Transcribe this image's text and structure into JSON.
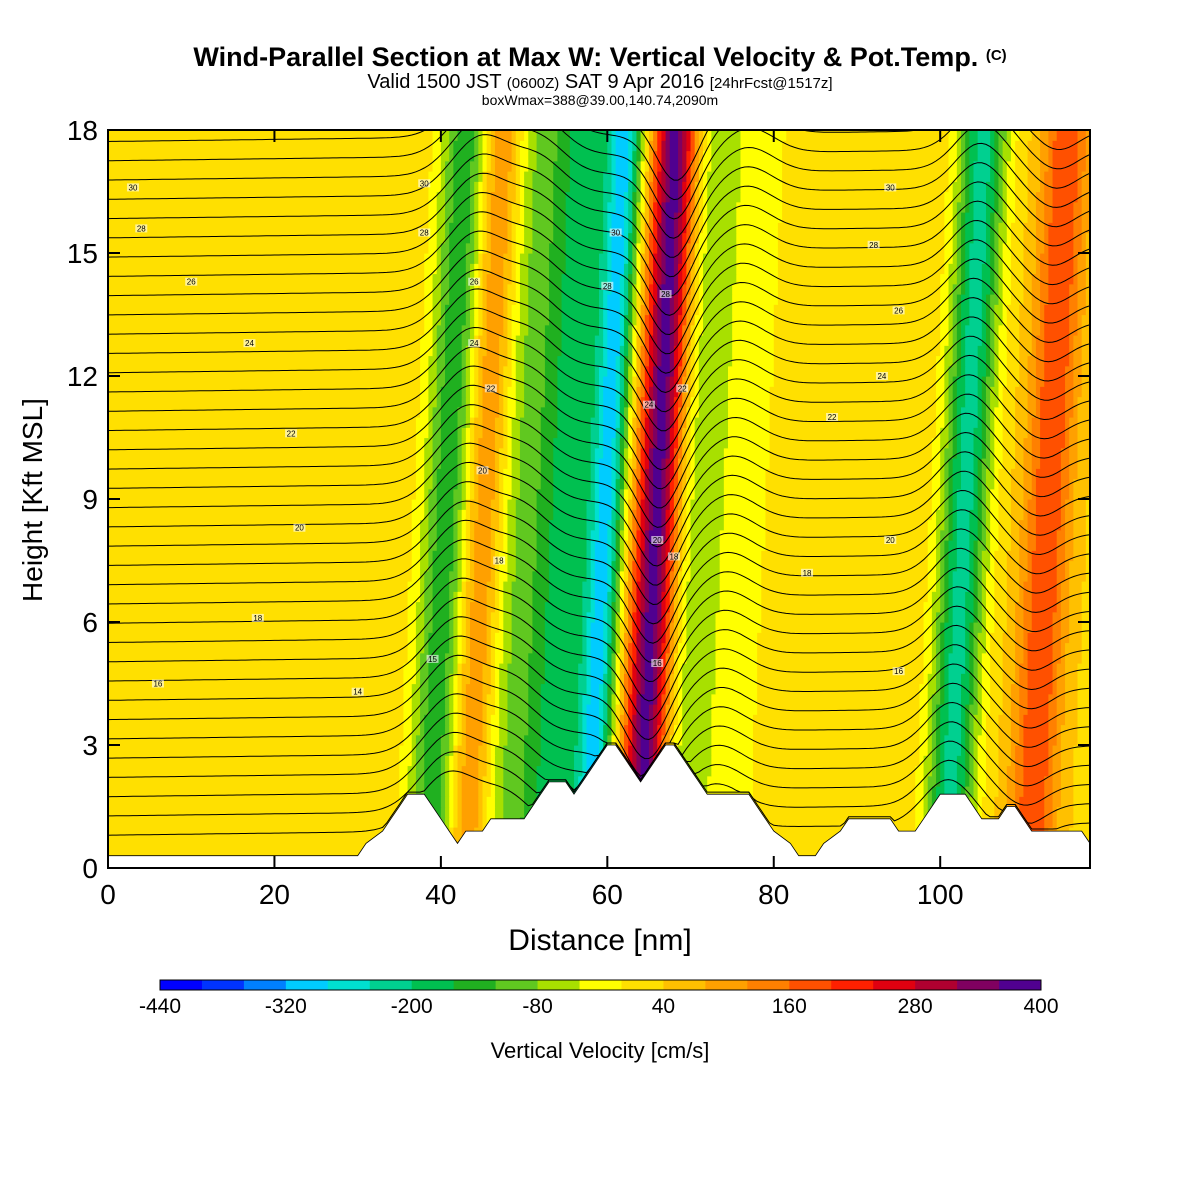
{
  "header": {
    "title": "Wind-Parallel Section at Max W: Vertical Velocity & Pot.Temp.",
    "copyright": "(C)",
    "valid_prefix": "Valid 1500 JST",
    "valid_utc": "(0600Z)",
    "valid_date": "SAT 9 Apr 2016",
    "forecast": "[24hrFcst@1517z]",
    "box_info": "boxWmax=388@39.00,140.74,2090m"
  },
  "chart_data": {
    "type": "heatmap",
    "title": "Wind-Parallel Section at Max W: Vertical Velocity & Pot.Temp.",
    "xlabel": "Distance [nm]",
    "ylabel": "Height [Kft MSL]",
    "xlim": [
      0,
      118
    ],
    "ylim": [
      0,
      18
    ],
    "xticks": [
      0,
      20,
      40,
      60,
      80,
      100
    ],
    "yticks": [
      0,
      3,
      6,
      9,
      12,
      15,
      18
    ],
    "colorbar": {
      "label": "Vertical Velocity [cm/s]",
      "ticks": [
        -440,
        -320,
        -200,
        -80,
        40,
        160,
        280,
        400
      ],
      "min": -440,
      "max": 400,
      "step": 40,
      "colors": [
        "#0000ff",
        "#0033ff",
        "#0080ff",
        "#00ccff",
        "#00e0d0",
        "#00d090",
        "#00c050",
        "#20b020",
        "#60c820",
        "#a8e000",
        "#ffff00",
        "#ffe000",
        "#ffc000",
        "#ffa000",
        "#ff8000",
        "#ff5000",
        "#ff2000",
        "#e00010",
        "#b00030",
        "#800060",
        "#500090"
      ]
    },
    "shading_field": {
      "background": 30,
      "columns": [
        {
          "x": 41,
          "w": 2.2,
          "v": -160
        },
        {
          "x": 45,
          "w": 2.0,
          "v": 150
        },
        {
          "x": 49,
          "w": 2.0,
          "v": -60
        },
        {
          "x": 55,
          "w": 3.0,
          "v": -180
        },
        {
          "x": 60,
          "w": 1.5,
          "v": -250
        },
        {
          "x": 66,
          "w": 1.8,
          "v": 380
        },
        {
          "x": 71,
          "w": 2.0,
          "v": -60
        },
        {
          "x": 76,
          "w": 3.0,
          "v": -20
        },
        {
          "x": 103,
          "w": 2.0,
          "v": -220
        },
        {
          "x": 113,
          "w": 2.0,
          "v": 200
        }
      ]
    },
    "theta_labels": [
      {
        "x": 3,
        "y": 16.6,
        "text": "30"
      },
      {
        "x": 4,
        "y": 15.6,
        "text": "28"
      },
      {
        "x": 10,
        "y": 14.3,
        "text": "26"
      },
      {
        "x": 17,
        "y": 12.8,
        "text": "24"
      },
      {
        "x": 22,
        "y": 10.6,
        "text": "22"
      },
      {
        "x": 23,
        "y": 8.3,
        "text": "20"
      },
      {
        "x": 18,
        "y": 6.1,
        "text": "18"
      },
      {
        "x": 6,
        "y": 4.5,
        "text": "16"
      },
      {
        "x": 30,
        "y": 4.3,
        "text": "14"
      },
      {
        "x": 39,
        "y": 5.1,
        "text": "15"
      },
      {
        "x": 38,
        "y": 16.7,
        "text": "30"
      },
      {
        "x": 38,
        "y": 15.5,
        "text": "28"
      },
      {
        "x": 44,
        "y": 14.3,
        "text": "26"
      },
      {
        "x": 44,
        "y": 12.8,
        "text": "24"
      },
      {
        "x": 46,
        "y": 11.7,
        "text": "22"
      },
      {
        "x": 45,
        "y": 9.7,
        "text": "20"
      },
      {
        "x": 47,
        "y": 7.5,
        "text": "18"
      },
      {
        "x": 61,
        "y": 15.5,
        "text": "30"
      },
      {
        "x": 60,
        "y": 14.2,
        "text": "28"
      },
      {
        "x": 67,
        "y": 14.0,
        "text": "28"
      },
      {
        "x": 69,
        "y": 11.7,
        "text": "22"
      },
      {
        "x": 65,
        "y": 11.3,
        "text": "24"
      },
      {
        "x": 66,
        "y": 8.0,
        "text": "20"
      },
      {
        "x": 68,
        "y": 7.6,
        "text": "18"
      },
      {
        "x": 66,
        "y": 5.0,
        "text": "16"
      },
      {
        "x": 94,
        "y": 16.6,
        "text": "30"
      },
      {
        "x": 92,
        "y": 15.2,
        "text": "28"
      },
      {
        "x": 95,
        "y": 13.6,
        "text": "26"
      },
      {
        "x": 93,
        "y": 12.0,
        "text": "24"
      },
      {
        "x": 87,
        "y": 11.0,
        "text": "22"
      },
      {
        "x": 94,
        "y": 8.0,
        "text": "20"
      },
      {
        "x": 84,
        "y": 7.2,
        "text": "18"
      },
      {
        "x": 95,
        "y": 4.8,
        "text": "16"
      }
    ],
    "terrain": [
      [
        0,
        0.3
      ],
      [
        30,
        0.3
      ],
      [
        31,
        0.6
      ],
      [
        33,
        0.9
      ],
      [
        34,
        1.2
      ],
      [
        35,
        1.5
      ],
      [
        36,
        1.8
      ],
      [
        38,
        1.8
      ],
      [
        39,
        1.5
      ],
      [
        40,
        1.2
      ],
      [
        41,
        0.9
      ],
      [
        42,
        0.6
      ],
      [
        43,
        0.9
      ],
      [
        45,
        0.9
      ],
      [
        46,
        1.2
      ],
      [
        50,
        1.2
      ],
      [
        51,
        1.5
      ],
      [
        52,
        1.8
      ],
      [
        53,
        2.1
      ],
      [
        55,
        2.1
      ],
      [
        56,
        1.8
      ],
      [
        57,
        2.1
      ],
      [
        58,
        2.4
      ],
      [
        59,
        2.7
      ],
      [
        60,
        3.0
      ],
      [
        61,
        3.0
      ],
      [
        62,
        2.7
      ],
      [
        63,
        2.4
      ],
      [
        64,
        2.1
      ],
      [
        65,
        2.4
      ],
      [
        66,
        2.7
      ],
      [
        67,
        3.0
      ],
      [
        68,
        3.0
      ],
      [
        69,
        2.7
      ],
      [
        70,
        2.4
      ],
      [
        71,
        2.1
      ],
      [
        72,
        1.8
      ],
      [
        77,
        1.8
      ],
      [
        78,
        1.5
      ],
      [
        79,
        1.2
      ],
      [
        80,
        0.9
      ],
      [
        82,
        0.6
      ],
      [
        83,
        0.3
      ],
      [
        85,
        0.3
      ],
      [
        86,
        0.6
      ],
      [
        88,
        0.9
      ],
      [
        89,
        1.2
      ],
      [
        94,
        1.2
      ],
      [
        95,
        0.9
      ],
      [
        97,
        0.9
      ],
      [
        98,
        1.2
      ],
      [
        99,
        1.5
      ],
      [
        100,
        1.8
      ],
      [
        103,
        1.8
      ],
      [
        104,
        1.5
      ],
      [
        105,
        1.2
      ],
      [
        107,
        1.2
      ],
      [
        108,
        1.5
      ],
      [
        109,
        1.5
      ],
      [
        110,
        1.2
      ],
      [
        111,
        0.9
      ],
      [
        117,
        0.9
      ],
      [
        118,
        0.6
      ]
    ]
  }
}
